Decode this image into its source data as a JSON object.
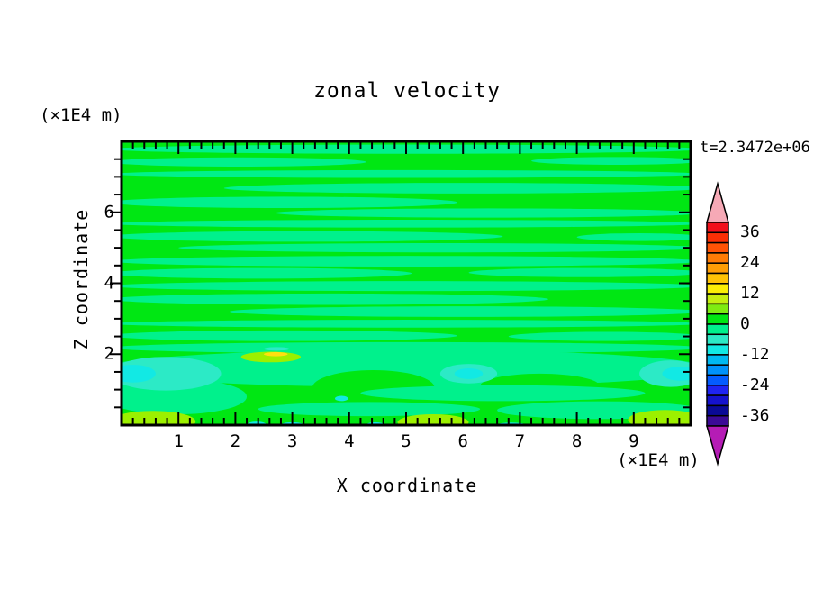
{
  "chart": {
    "title": "zonal velocity",
    "time_label": "t=2.3472e+06",
    "x_label": "X coordinate",
    "z_label": "Z coordinate",
    "x_unit": "(×1E4 m)",
    "z_unit": "(×1E4 m)"
  },
  "chart_data": {
    "type": "filled_contour",
    "title": "zonal velocity",
    "xlabel": "X coordinate",
    "ylabel": "Z coordinate",
    "x_unit": "(×1E4 m)",
    "y_unit": "(×1E4 m)",
    "time_annotation": "t=2.3472e+06",
    "x_range": [
      0,
      10
    ],
    "z_range": [
      0,
      8
    ],
    "x_tick_labels": [
      "1",
      "2",
      "3",
      "4",
      "5",
      "6",
      "7",
      "8",
      "9"
    ],
    "x_tick_values": [
      1,
      2,
      3,
      4,
      5,
      6,
      7,
      8,
      9
    ],
    "x_minor_step": 0.2,
    "z_tick_labels": [
      "6",
      "4",
      "2"
    ],
    "z_tick_values": [
      6,
      4,
      2
    ],
    "z_minor_step": 0.5,
    "grid": false,
    "colorbar": {
      "position": "right",
      "min": -40,
      "max": 40,
      "step": 4,
      "labeled_levels": [
        "36",
        "24",
        "12",
        "0",
        "-12",
        "-24",
        "-36"
      ],
      "labeled_values": [
        36,
        24,
        12,
        0,
        -12,
        -24,
        -36
      ],
      "colors_top_to_bottom": [
        "#f2101c",
        "#fb2f06",
        "#ff5306",
        "#ff7c06",
        "#ff9e06",
        "#ffc306",
        "#fbee06",
        "#c6ef10",
        "#7fec12",
        "#00e713",
        "#00f18c",
        "#2ceac6",
        "#12e9e4",
        "#00b9f2",
        "#0092fb",
        "#045cff",
        "#1f24f2",
        "#1512cd",
        "#0a0a96",
        "#3c0a96"
      ],
      "over_arrow_color": "#f6a9b6",
      "under_arrow_color": "#b51cb5"
    },
    "field_colors": {
      "g": "#00e713",
      "sg": "#00f18c",
      "tq": "#2ceac6",
      "cy": "#12e9e4",
      "gy": "#9cf000",
      "yl": "#ffdf10"
    },
    "background_level": "0..4",
    "background_color": "#00e713",
    "bands": [
      {
        "c": "sg",
        "level": "-4..0",
        "x": [
          -0.2,
          10.2
        ],
        "z": 7.78,
        "h": 0.26
      },
      {
        "c": "sg",
        "level": "-4..0",
        "x": [
          -0.2,
          4.3
        ],
        "z": 7.42,
        "h": 0.26
      },
      {
        "c": "sg",
        "level": "-4..0",
        "x": [
          7.2,
          10.2
        ],
        "z": 7.45,
        "h": 0.22
      },
      {
        "c": "sg",
        "level": "-4..0",
        "x": [
          -0.2,
          10.2
        ],
        "z": 7.08,
        "h": 0.22
      },
      {
        "c": "sg",
        "level": "-4..0",
        "x": [
          1.8,
          10.2
        ],
        "z": 6.68,
        "h": 0.3
      },
      {
        "c": "sg",
        "level": "-4..0",
        "x": [
          -0.2,
          5.9
        ],
        "z": 6.28,
        "h": 0.32
      },
      {
        "c": "sg",
        "level": "-4..0",
        "x": [
          2.7,
          10.2
        ],
        "z": 5.98,
        "h": 0.26
      },
      {
        "c": "sg",
        "level": "-4..0",
        "x": [
          -0.2,
          10.2
        ],
        "z": 5.68,
        "h": 0.22
      },
      {
        "c": "sg",
        "level": "-4..0",
        "x": [
          -0.2,
          6.7
        ],
        "z": 5.32,
        "h": 0.3
      },
      {
        "c": "sg",
        "level": "-4..0",
        "x": [
          8.0,
          10.2
        ],
        "z": 5.3,
        "h": 0.22
      },
      {
        "c": "sg",
        "level": "-4..0",
        "x": [
          1.0,
          10.2
        ],
        "z": 5.0,
        "h": 0.26
      },
      {
        "c": "sg",
        "level": "-4..0",
        "x": [
          -0.2,
          10.2
        ],
        "z": 4.62,
        "h": 0.3
      },
      {
        "c": "sg",
        "level": "-4..0",
        "x": [
          -0.2,
          5.1
        ],
        "z": 4.28,
        "h": 0.3
      },
      {
        "c": "sg",
        "level": "-4..0",
        "x": [
          6.1,
          10.2
        ],
        "z": 4.3,
        "h": 0.26
      },
      {
        "c": "sg",
        "level": "-4..0",
        "x": [
          -0.2,
          10.2
        ],
        "z": 3.92,
        "h": 0.28
      },
      {
        "c": "sg",
        "level": "-4..0",
        "x": [
          -0.2,
          7.5
        ],
        "z": 3.55,
        "h": 0.32
      },
      {
        "c": "sg",
        "level": "-4..0",
        "x": [
          1.9,
          10.2
        ],
        "z": 3.2,
        "h": 0.3
      },
      {
        "c": "sg",
        "level": "-4..0",
        "x": [
          -0.2,
          10.2
        ],
        "z": 2.86,
        "h": 0.22
      },
      {
        "c": "sg",
        "level": "-4..0",
        "x": [
          -0.2,
          5.9
        ],
        "z": 2.52,
        "h": 0.3
      },
      {
        "c": "sg",
        "level": "-4..0",
        "x": [
          6.8,
          10.2
        ],
        "z": 2.5,
        "h": 0.26
      },
      {
        "c": "sg",
        "level": "-4..0",
        "x": [
          -0.2,
          10.2
        ],
        "z": 2.18,
        "h": 0.32
      },
      {
        "c": "sg",
        "level": "-4..0",
        "x": [
          -0.3,
          10.3
        ],
        "z": 1.6,
        "h": 1.05
      },
      {
        "c": "sg",
        "level": "-4..0",
        "x": [
          -0.3,
          2.2
        ],
        "z": 0.8,
        "h": 1.0
      },
      {
        "c": "g",
        "level": "0..4",
        "x": [
          3.35,
          5.5
        ],
        "z": 1.05,
        "h": 1.0
      },
      {
        "c": "g",
        "level": "0..4",
        "x": [
          6.3,
          8.4
        ],
        "z": 1.1,
        "h": 0.7
      },
      {
        "c": "sg",
        "level": "-4..0",
        "x": [
          2.4,
          6.3
        ],
        "z": 0.45,
        "h": 0.4
      },
      {
        "c": "sg",
        "level": "-4..0",
        "x": [
          4.2,
          9.2
        ],
        "z": 0.9,
        "h": 0.45
      },
      {
        "c": "sg",
        "level": "-4..0",
        "x": [
          6.6,
          10.2
        ],
        "z": 0.42,
        "h": 0.5
      },
      {
        "c": "tq",
        "level": "-8..-4",
        "x": [
          -0.2,
          1.75
        ],
        "z": 1.45,
        "h": 0.95
      },
      {
        "c": "cy",
        "level": "-12..-8",
        "x": [
          -0.2,
          0.6
        ],
        "z": 1.45,
        "h": 0.5
      },
      {
        "c": "tq",
        "level": "-8..-4",
        "x": [
          5.6,
          6.6
        ],
        "z": 1.45,
        "h": 0.55
      },
      {
        "c": "cy",
        "level": "-12..-8",
        "x": [
          5.85,
          6.35
        ],
        "z": 1.45,
        "h": 0.3
      },
      {
        "c": "tq",
        "level": "-8..-4",
        "x": [
          9.1,
          10.2
        ],
        "z": 1.45,
        "h": 0.75
      },
      {
        "c": "cy",
        "level": "-12..-8",
        "x": [
          9.5,
          10.15
        ],
        "z": 1.45,
        "h": 0.4
      },
      {
        "c": "tq",
        "level": "-8..-4",
        "x": [
          2.5,
          2.95
        ],
        "z": 2.15,
        "h": 0.1
      },
      {
        "c": "cy",
        "level": "-12..-8",
        "x": [
          3.75,
          3.98
        ],
        "z": 0.75,
        "h": 0.15
      },
      {
        "c": "gy",
        "level": "8..12",
        "x": [
          -0.2,
          1.3
        ],
        "z": 0.1,
        "h": 0.6
      },
      {
        "c": "gy",
        "level": "8..12",
        "x": [
          4.85,
          6.1
        ],
        "z": 0.08,
        "h": 0.45
      },
      {
        "c": "gy",
        "level": "8..12",
        "x": [
          8.9,
          10.2
        ],
        "z": 0.15,
        "h": 0.55
      },
      {
        "c": "gy",
        "level": "8..12",
        "x": [
          2.1,
          3.15
        ],
        "z": 1.92,
        "h": 0.3
      },
      {
        "c": "yl",
        "level": "12..16",
        "x": [
          2.5,
          2.92
        ],
        "z": 2.0,
        "h": 0.12
      },
      {
        "c": "cy",
        "level": "-12..-8",
        "x": [
          2.2,
          2.55
        ],
        "z": 0.0,
        "h": 0.2
      },
      {
        "c": "cy",
        "level": "-12..-8",
        "x": [
          2.8,
          3.2
        ],
        "z": 0.0,
        "h": 0.16
      },
      {
        "c": "cy",
        "level": "-12..-8",
        "x": [
          4.3,
          4.62
        ],
        "z": 0.0,
        "h": 0.16
      },
      {
        "c": "cy",
        "level": "-12..-8",
        "x": [
          6.6,
          7.1
        ],
        "z": 0.0,
        "h": 0.14
      }
    ]
  }
}
